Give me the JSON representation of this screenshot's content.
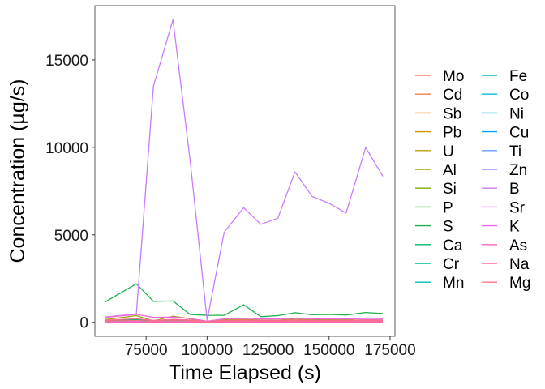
{
  "chart_data": {
    "type": "line",
    "xlabel": "Time Elapsed (s)",
    "ylabel": "Concentration (µg/s)",
    "xlim": [
      54000,
      177000
    ],
    "ylim": [
      -800,
      18100
    ],
    "xticks": [
      75000,
      100000,
      125000,
      150000,
      175000
    ],
    "xtick_labels": [
      "75000",
      "100000",
      "125000",
      "150000",
      "175000"
    ],
    "yticks": [
      0,
      5000,
      10000,
      15000
    ],
    "ytick_labels": [
      "0",
      "5000",
      "10000",
      "15000"
    ],
    "grid": false,
    "legend_position": "right",
    "legend_columns": 2,
    "x": [
      58000,
      71000,
      78000,
      86000,
      93000,
      100000,
      107000,
      115000,
      122000,
      129000,
      136000,
      143000,
      150000,
      157000,
      165000,
      172000
    ],
    "series": [
      {
        "name": "Mo",
        "color": "#F8766D",
        "values": [
          30,
          40,
          30,
          40,
          30,
          20,
          30,
          40,
          30,
          30,
          40,
          30,
          30,
          30,
          40,
          30
        ]
      },
      {
        "name": "Cd",
        "color": "#F17F43",
        "values": [
          10,
          10,
          10,
          10,
          10,
          10,
          10,
          10,
          10,
          10,
          10,
          10,
          10,
          10,
          10,
          10
        ]
      },
      {
        "name": "Sb",
        "color": "#E58700",
        "values": [
          20,
          30,
          20,
          20,
          20,
          10,
          20,
          20,
          20,
          20,
          20,
          20,
          20,
          20,
          20,
          20
        ]
      },
      {
        "name": "Pb",
        "color": "#D39200",
        "values": [
          20,
          30,
          20,
          20,
          20,
          10,
          20,
          20,
          20,
          20,
          20,
          20,
          20,
          20,
          20,
          20
        ]
      },
      {
        "name": "U",
        "color": "#BB9D00",
        "values": [
          10,
          10,
          10,
          10,
          10,
          10,
          10,
          10,
          10,
          10,
          10,
          10,
          10,
          10,
          10,
          10
        ]
      },
      {
        "name": "Al",
        "color": "#9EA700",
        "values": [
          150,
          380,
          80,
          350,
          200,
          40,
          140,
          170,
          130,
          120,
          190,
          140,
          180,
          150,
          240,
          220
        ]
      },
      {
        "name": "Si",
        "color": "#7CAE00",
        "values": [
          80,
          130,
          60,
          110,
          90,
          30,
          80,
          90,
          80,
          80,
          90,
          80,
          90,
          80,
          100,
          90
        ]
      },
      {
        "name": "P",
        "color": "#3EB33C",
        "values": [
          20,
          30,
          20,
          30,
          20,
          10,
          20,
          20,
          20,
          20,
          20,
          20,
          20,
          20,
          20,
          20
        ]
      },
      {
        "name": "S",
        "color": "#1DB04F",
        "values": [
          1150,
          2200,
          1200,
          1220,
          450,
          400,
          400,
          1000,
          320,
          380,
          550,
          430,
          450,
          420,
          560,
          500
        ]
      },
      {
        "name": "Ca",
        "color": "#00BA6A",
        "values": [
          110,
          160,
          90,
          150,
          120,
          40,
          100,
          120,
          100,
          90,
          120,
          100,
          120,
          100,
          140,
          130
        ]
      },
      {
        "name": "Cr",
        "color": "#00BD91",
        "values": [
          10,
          10,
          10,
          10,
          10,
          10,
          10,
          10,
          10,
          10,
          10,
          10,
          10,
          10,
          10,
          10
        ]
      },
      {
        "name": "Mn",
        "color": "#00C0AF",
        "values": [
          30,
          40,
          30,
          40,
          30,
          20,
          30,
          30,
          30,
          30,
          30,
          30,
          30,
          30,
          40,
          30
        ]
      },
      {
        "name": "Fe",
        "color": "#00BFC4",
        "values": [
          50,
          90,
          40,
          80,
          60,
          20,
          50,
          60,
          50,
          50,
          60,
          50,
          60,
          50,
          70,
          60
        ]
      },
      {
        "name": "Co",
        "color": "#00BBDB",
        "values": [
          10,
          10,
          10,
          10,
          10,
          10,
          10,
          10,
          10,
          10,
          10,
          10,
          10,
          10,
          10,
          10
        ]
      },
      {
        "name": "Ni",
        "color": "#00B4EF",
        "values": [
          10,
          20,
          10,
          20,
          10,
          10,
          10,
          10,
          10,
          10,
          10,
          10,
          10,
          10,
          20,
          10
        ]
      },
      {
        "name": "Cu",
        "color": "#00A5FF",
        "values": [
          20,
          30,
          20,
          30,
          20,
          10,
          20,
          20,
          20,
          20,
          20,
          20,
          20,
          20,
          30,
          20
        ]
      },
      {
        "name": "Ti",
        "color": "#619CFF",
        "values": [
          20,
          30,
          20,
          30,
          20,
          10,
          20,
          20,
          20,
          20,
          20,
          20,
          20,
          20,
          30,
          20
        ]
      },
      {
        "name": "Zn",
        "color": "#9590FF",
        "values": [
          40,
          60,
          40,
          50,
          40,
          20,
          40,
          40,
          40,
          40,
          50,
          40,
          40,
          40,
          50,
          40
        ]
      },
      {
        "name": "B",
        "color": "#C77CFF",
        "values": [
          300,
          480,
          13500,
          17300,
          9300,
          120,
          5150,
          6550,
          5600,
          5950,
          8600,
          7200,
          6800,
          6250,
          10000,
          8350
        ]
      },
      {
        "name": "Sr",
        "color": "#E36EF6",
        "values": [
          10,
          20,
          10,
          20,
          10,
          10,
          10,
          10,
          10,
          10,
          10,
          10,
          10,
          10,
          20,
          10
        ]
      },
      {
        "name": "K",
        "color": "#F265E7",
        "values": [
          280,
          450,
          280,
          300,
          220,
          60,
          200,
          230,
          190,
          190,
          230,
          190,
          200,
          190,
          220,
          210
        ]
      },
      {
        "name": "As",
        "color": "#FF62BC",
        "values": [
          10,
          10,
          10,
          10,
          10,
          10,
          10,
          10,
          10,
          10,
          10,
          10,
          10,
          10,
          10,
          10
        ]
      },
      {
        "name": "Na",
        "color": "#FF6A98",
        "values": [
          120,
          200,
          110,
          170,
          130,
          40,
          110,
          130,
          110,
          110,
          130,
          110,
          120,
          110,
          140,
          130
        ]
      },
      {
        "name": "Mg",
        "color": "#FF7083",
        "values": [
          70,
          100,
          60,
          90,
          70,
          20,
          60,
          70,
          60,
          60,
          70,
          60,
          70,
          60,
          80,
          70
        ]
      }
    ]
  }
}
